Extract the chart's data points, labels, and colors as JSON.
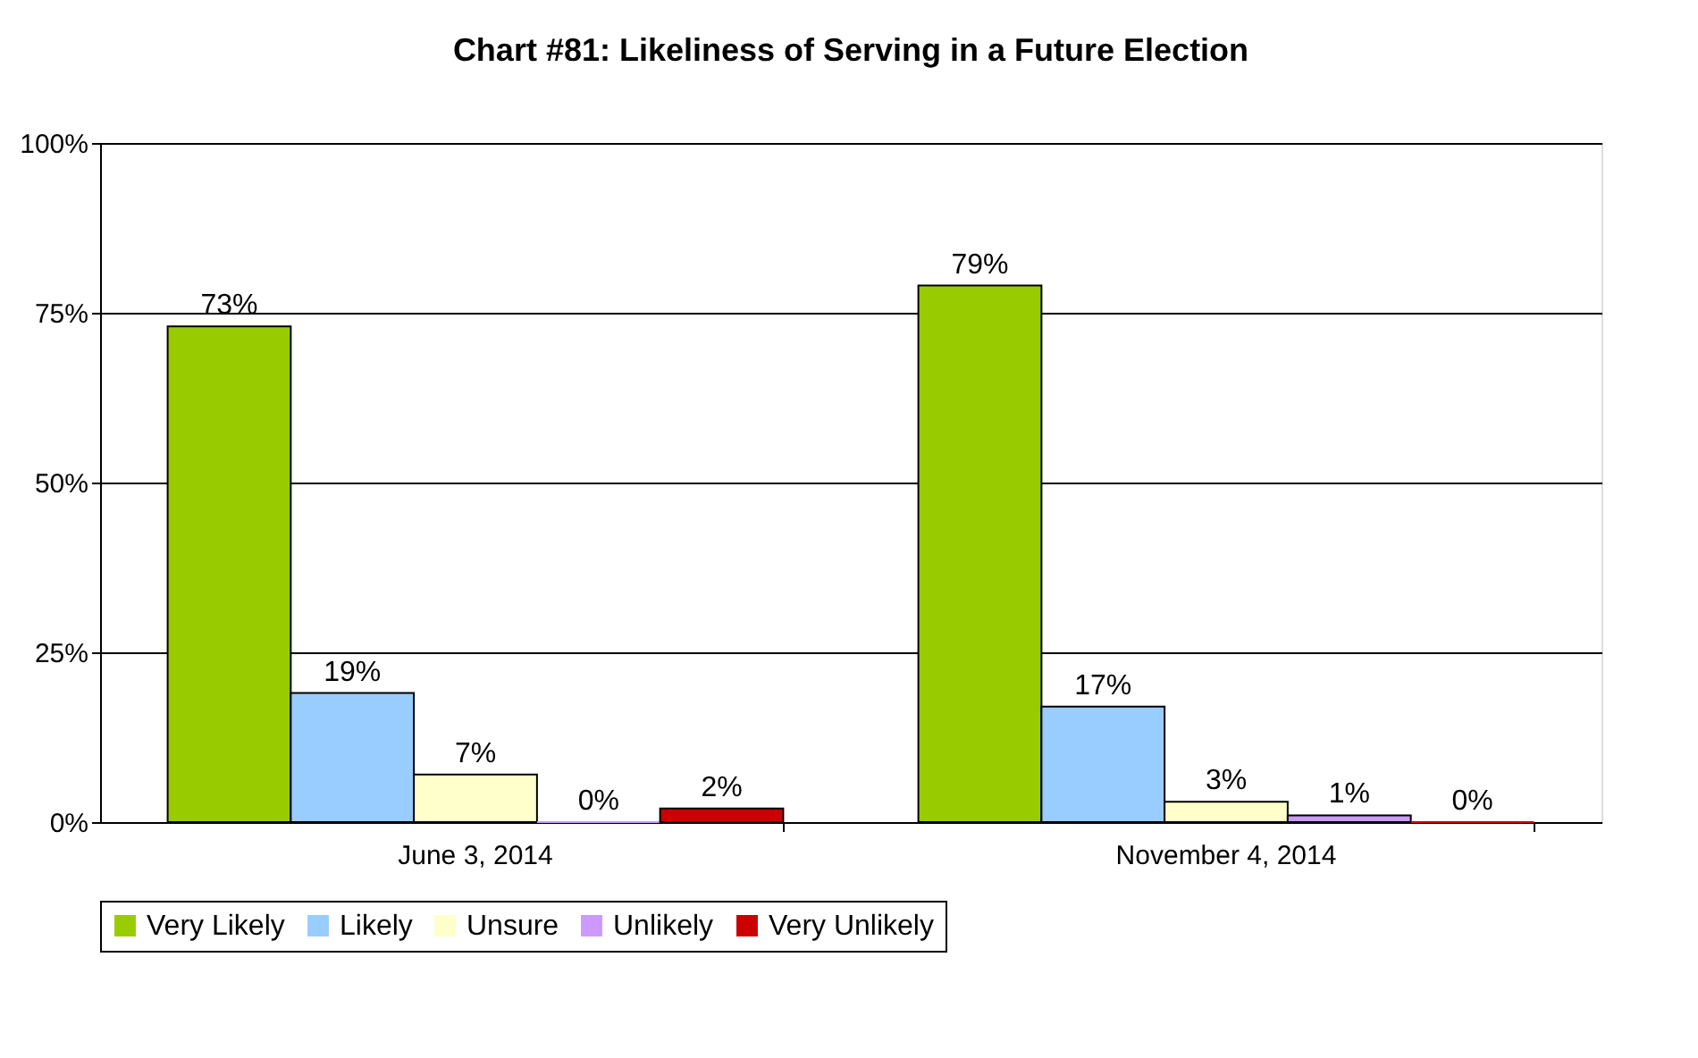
{
  "chart_data": {
    "type": "bar",
    "title": "Chart #81: Likeliness of Serving in a Future Election",
    "categories": [
      "June 3, 2014",
      "November 4, 2014"
    ],
    "series": [
      {
        "name": "Very Likely",
        "color": "#99cc00",
        "values": [
          73,
          79
        ]
      },
      {
        "name": "Likely",
        "color": "#99ccff",
        "values": [
          19,
          17
        ]
      },
      {
        "name": "Unsure",
        "color": "#ffffcc",
        "values": [
          7,
          3
        ]
      },
      {
        "name": "Unlikely",
        "color": "#cc99ff",
        "values": [
          0,
          1
        ]
      },
      {
        "name": "Very Unlikely",
        "color": "#cc0000",
        "values": [
          2,
          0
        ]
      }
    ],
    "value_labels": [
      [
        "73%",
        "79%"
      ],
      [
        "19%",
        "17%"
      ],
      [
        "7%",
        "3%"
      ],
      [
        "0%",
        "1%"
      ],
      [
        "2%",
        "0%"
      ]
    ],
    "ylim": [
      0,
      100
    ],
    "yticks": [
      {
        "value": 0,
        "label": "0%"
      },
      {
        "value": 25,
        "label": "25%"
      },
      {
        "value": 50,
        "label": "50%"
      },
      {
        "value": 75,
        "label": "75%"
      },
      {
        "value": 100,
        "label": "100%"
      }
    ],
    "grid": "y",
    "legend": "bottom"
  }
}
